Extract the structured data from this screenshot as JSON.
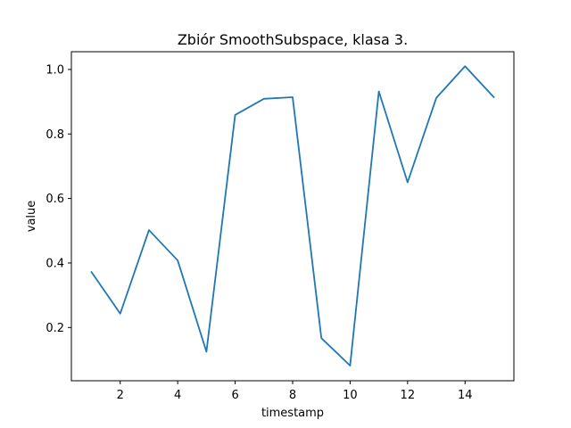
{
  "chart_data": {
    "type": "line",
    "title": "Zbiór SmoothSubspace, klasa 3.",
    "xlabel": "timestamp",
    "ylabel": "value",
    "x": [
      1,
      2,
      3,
      4,
      5,
      6,
      7,
      8,
      9,
      10,
      11,
      12,
      13,
      14,
      15
    ],
    "series": [
      {
        "values": [
          0.372,
          0.243,
          0.502,
          0.408,
          0.125,
          0.859,
          0.909,
          0.914,
          0.167,
          0.082,
          0.932,
          0.65,
          0.912,
          1.01,
          0.914
        ],
        "color": "#1f77b4"
      }
    ],
    "xlim": [
      0.3,
      15.7
    ],
    "ylim": [
      0.035,
      1.055
    ],
    "xticks": [
      2,
      4,
      6,
      8,
      10,
      12,
      14
    ],
    "yticks": [
      0.2,
      0.4,
      0.6,
      0.8,
      1.0
    ],
    "xtick_labels": [
      "2",
      "4",
      "6",
      "8",
      "10",
      "12",
      "14"
    ],
    "ytick_labels": [
      "0.2",
      "0.4",
      "0.6",
      "0.8",
      "1.0"
    ],
    "grid": false,
    "legend": "none"
  }
}
